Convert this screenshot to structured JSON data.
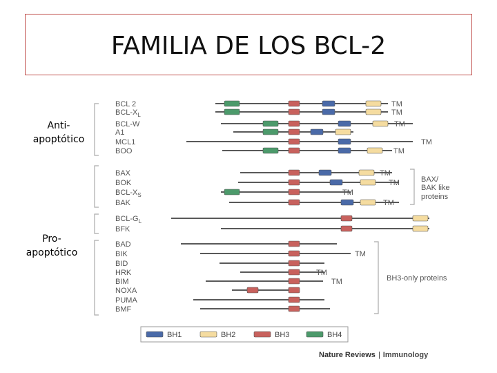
{
  "title": "FAMILIA DE LOS BCL-2",
  "side_labels": {
    "anti_line1": "Anti-",
    "anti_line2": "apoptótico",
    "pro_line1": "Pro-",
    "pro_line2": "apoptótico"
  },
  "group_labels": {
    "bax_bak_line1": "BAX/",
    "bax_bak_line2": "BAK like",
    "bax_bak_line3": "proteins",
    "bh3_only": "BH3-only proteins"
  },
  "colors": {
    "BH1": "#4a6aa8",
    "BH2": "#f5dca0",
    "BH3": "#c8615d",
    "BH4": "#4c9a6b"
  },
  "proteins": [
    {
      "name": "BCL 2",
      "domains": [
        "BH4",
        "BH3",
        "BH1",
        "BH2"
      ],
      "tm": "TM"
    },
    {
      "name": "BCL-X",
      "sub": "L",
      "domains": [
        "BH4",
        "BH3",
        "BH1",
        "BH2"
      ],
      "tm": "TM"
    },
    {
      "name": "BCL-W",
      "domains": [
        "BH4",
        "BH3",
        "BH1",
        "BH2"
      ],
      "tm": "TM"
    },
    {
      "name": "A1",
      "domains": [
        "BH4",
        "BH3",
        "BH1",
        "BH2"
      ],
      "tm": ""
    },
    {
      "name": "MCL1",
      "domains": [
        "BH3",
        "BH1"
      ],
      "tm": "TM"
    },
    {
      "name": "BOO",
      "domains": [
        "BH4",
        "BH3",
        "BH1",
        "BH2"
      ],
      "tm": "TM"
    },
    {
      "name": "BAX",
      "domains": [
        "BH3",
        "BH1",
        "BH2"
      ],
      "tm": "TM"
    },
    {
      "name": "BOK",
      "domains": [
        "BH3",
        "BH1",
        "BH2"
      ],
      "tm": "TM"
    },
    {
      "name": "BCL-X",
      "sub": "S",
      "domains": [
        "BH4",
        "BH3"
      ],
      "tm": "TM"
    },
    {
      "name": "BAK",
      "domains": [
        "BH3",
        "BH1",
        "BH2"
      ],
      "tm": "TM"
    },
    {
      "name": "BCL-G",
      "sub": "L",
      "domains": [
        "BH3",
        "BH2"
      ],
      "tm": ""
    },
    {
      "name": "BFK",
      "domains": [
        "BH3",
        "BH2"
      ],
      "tm": ""
    },
    {
      "name": "BAD",
      "domains": [
        "BH3"
      ],
      "tm": ""
    },
    {
      "name": "BIK",
      "domains": [
        "BH3"
      ],
      "tm": "TM"
    },
    {
      "name": "BID",
      "domains": [
        "BH3"
      ],
      "tm": ""
    },
    {
      "name": "HRK",
      "domains": [
        "BH3"
      ],
      "tm": "TM"
    },
    {
      "name": "BIM",
      "domains": [
        "BH3"
      ],
      "tm": "TM"
    },
    {
      "name": "NOXA",
      "domains": [
        "BH3",
        "BH3"
      ],
      "tm": ""
    },
    {
      "name": "PUMA",
      "domains": [
        "BH3"
      ],
      "tm": ""
    },
    {
      "name": "BMF",
      "domains": [
        "BH3"
      ],
      "tm": ""
    }
  ],
  "legend": [
    {
      "key": "BH1",
      "label": "BH1"
    },
    {
      "key": "BH2",
      "label": "BH2"
    },
    {
      "key": "BH3",
      "label": "BH3"
    },
    {
      "key": "BH4",
      "label": "BH4"
    }
  ],
  "credit": {
    "journal": "Nature Reviews",
    "separator": "|",
    "section": "Immunology"
  }
}
